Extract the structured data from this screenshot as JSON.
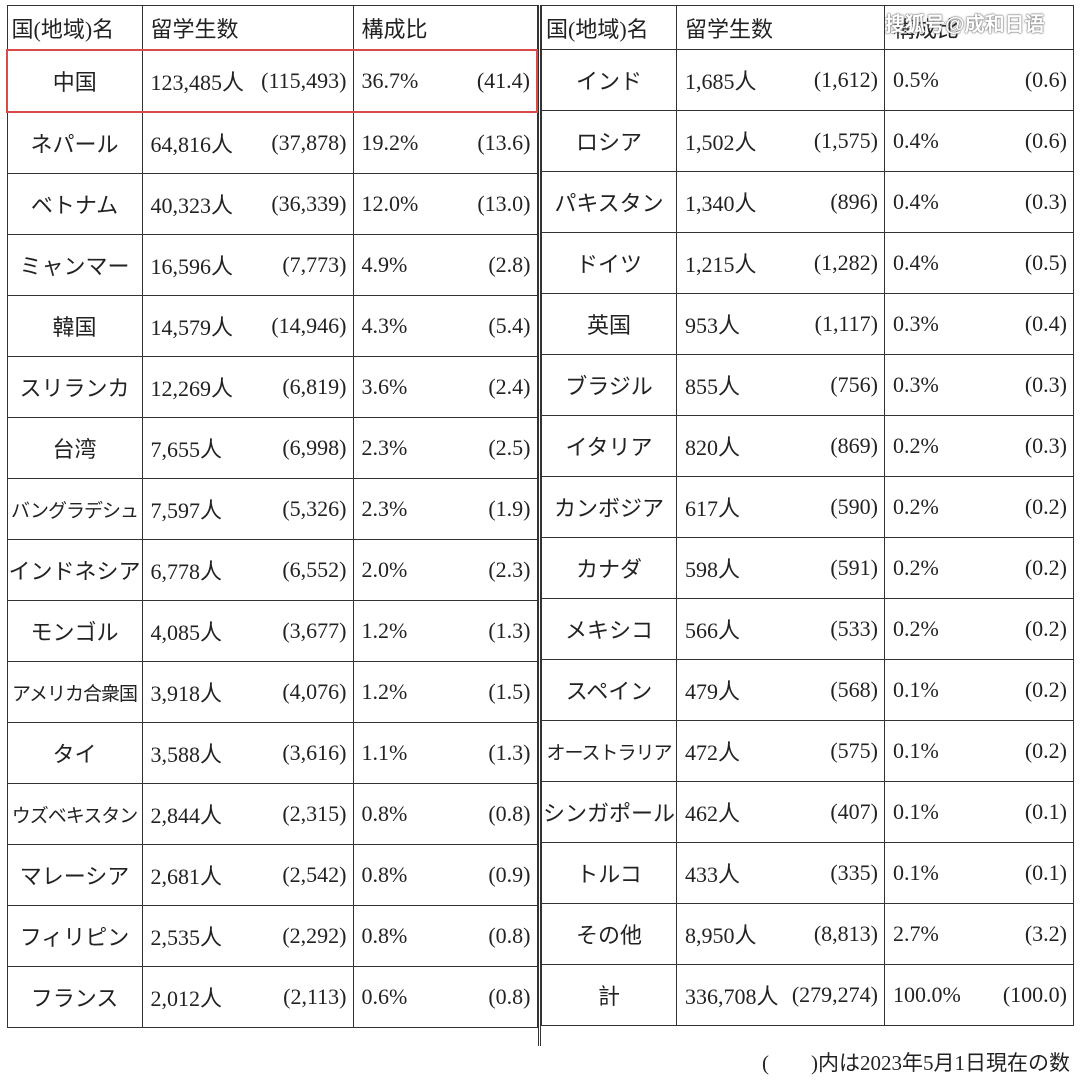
{
  "headers": {
    "country": "国(地域)名",
    "students": "留学生数",
    "ratio": "構成比"
  },
  "left_rows": [
    {
      "name": "中国",
      "count": "123,485人",
      "prev": "(115,493)",
      "pct": "36.7%",
      "prev_pct": "(41.4)"
    },
    {
      "name": "ネパール",
      "count": "64,816人",
      "prev": "(37,878)",
      "pct": "19.2%",
      "prev_pct": "(13.6)"
    },
    {
      "name": "ベトナム",
      "count": "40,323人",
      "prev": "(36,339)",
      "pct": "12.0%",
      "prev_pct": "(13.0)"
    },
    {
      "name": "ミャンマー",
      "count": "16,596人",
      "prev": "(7,773)",
      "pct": "4.9%",
      "prev_pct": "(2.8)"
    },
    {
      "name": "韓国",
      "count": "14,579人",
      "prev": "(14,946)",
      "pct": "4.3%",
      "prev_pct": "(5.4)"
    },
    {
      "name": "スリランカ",
      "count": "12,269人",
      "prev": "(6,819)",
      "pct": "3.6%",
      "prev_pct": "(2.4)"
    },
    {
      "name": "台湾",
      "count": "7,655人",
      "prev": "(6,998)",
      "pct": "2.3%",
      "prev_pct": "(2.5)"
    },
    {
      "name": "バングラデシュ",
      "count": "7,597人",
      "prev": "(5,326)",
      "pct": "2.3%",
      "prev_pct": "(1.9)"
    },
    {
      "name": "インドネシア",
      "count": "6,778人",
      "prev": "(6,552)",
      "pct": "2.0%",
      "prev_pct": "(2.3)"
    },
    {
      "name": "モンゴル",
      "count": "4,085人",
      "prev": "(3,677)",
      "pct": "1.2%",
      "prev_pct": "(1.3)"
    },
    {
      "name": "アメリカ合衆国",
      "count": "3,918人",
      "prev": "(4,076)",
      "pct": "1.2%",
      "prev_pct": "(1.5)"
    },
    {
      "name": "タイ",
      "count": "3,588人",
      "prev": "(3,616)",
      "pct": "1.1%",
      "prev_pct": "(1.3)"
    },
    {
      "name": "ウズベキスタン",
      "count": "2,844人",
      "prev": "(2,315)",
      "pct": "0.8%",
      "prev_pct": "(0.8)"
    },
    {
      "name": "マレーシア",
      "count": "2,681人",
      "prev": "(2,542)",
      "pct": "0.8%",
      "prev_pct": "(0.9)"
    },
    {
      "name": "フィリピン",
      "count": "2,535人",
      "prev": "(2,292)",
      "pct": "0.8%",
      "prev_pct": "(0.8)"
    },
    {
      "name": "フランス",
      "count": "2,012人",
      "prev": "(2,113)",
      "pct": "0.6%",
      "prev_pct": "(0.8)"
    }
  ],
  "right_rows": [
    {
      "name": "インド",
      "count": "1,685人",
      "prev": "(1,612)",
      "pct": "0.5%",
      "prev_pct": "(0.6)"
    },
    {
      "name": "ロシア",
      "count": "1,502人",
      "prev": "(1,575)",
      "pct": "0.4%",
      "prev_pct": "(0.6)"
    },
    {
      "name": "パキスタン",
      "count": "1,340人",
      "prev": "(896)",
      "pct": "0.4%",
      "prev_pct": "(0.3)"
    },
    {
      "name": "ドイツ",
      "count": "1,215人",
      "prev": "(1,282)",
      "pct": "0.4%",
      "prev_pct": "(0.5)"
    },
    {
      "name": "英国",
      "count": "953人",
      "prev": "(1,117)",
      "pct": "0.3%",
      "prev_pct": "(0.4)"
    },
    {
      "name": "ブラジル",
      "count": "855人",
      "prev": "(756)",
      "pct": "0.3%",
      "prev_pct": "(0.3)"
    },
    {
      "name": "イタリア",
      "count": "820人",
      "prev": "(869)",
      "pct": "0.2%",
      "prev_pct": "(0.3)"
    },
    {
      "name": "カンボジア",
      "count": "617人",
      "prev": "(590)",
      "pct": "0.2%",
      "prev_pct": "(0.2)"
    },
    {
      "name": "カナダ",
      "count": "598人",
      "prev": "(591)",
      "pct": "0.2%",
      "prev_pct": "(0.2)"
    },
    {
      "name": "メキシコ",
      "count": "566人",
      "prev": "(533)",
      "pct": "0.2%",
      "prev_pct": "(0.2)"
    },
    {
      "name": "スペイン",
      "count": "479人",
      "prev": "(568)",
      "pct": "0.1%",
      "prev_pct": "(0.2)"
    },
    {
      "name": "オーストラリア",
      "count": "472人",
      "prev": "(575)",
      "pct": "0.1%",
      "prev_pct": "(0.2)"
    },
    {
      "name": "シンガポール",
      "count": "462人",
      "prev": "(407)",
      "pct": "0.1%",
      "prev_pct": "(0.1)"
    },
    {
      "name": "トルコ",
      "count": "433人",
      "prev": "(335)",
      "pct": "0.1%",
      "prev_pct": "(0.1)"
    },
    {
      "name": "その他",
      "count": "8,950人",
      "prev": "(8,813)",
      "pct": "2.7%",
      "prev_pct": "(3.2)"
    },
    {
      "name": "計",
      "count": "336,708人",
      "prev": "(279,274)",
      "pct": "100.0%",
      "prev_pct": "(100.0)"
    }
  ],
  "footnote": "(　　)内は2023年5月1日現在の数",
  "watermark": "搜狐号@成和日语",
  "highlight_color": "#d94b4b"
}
